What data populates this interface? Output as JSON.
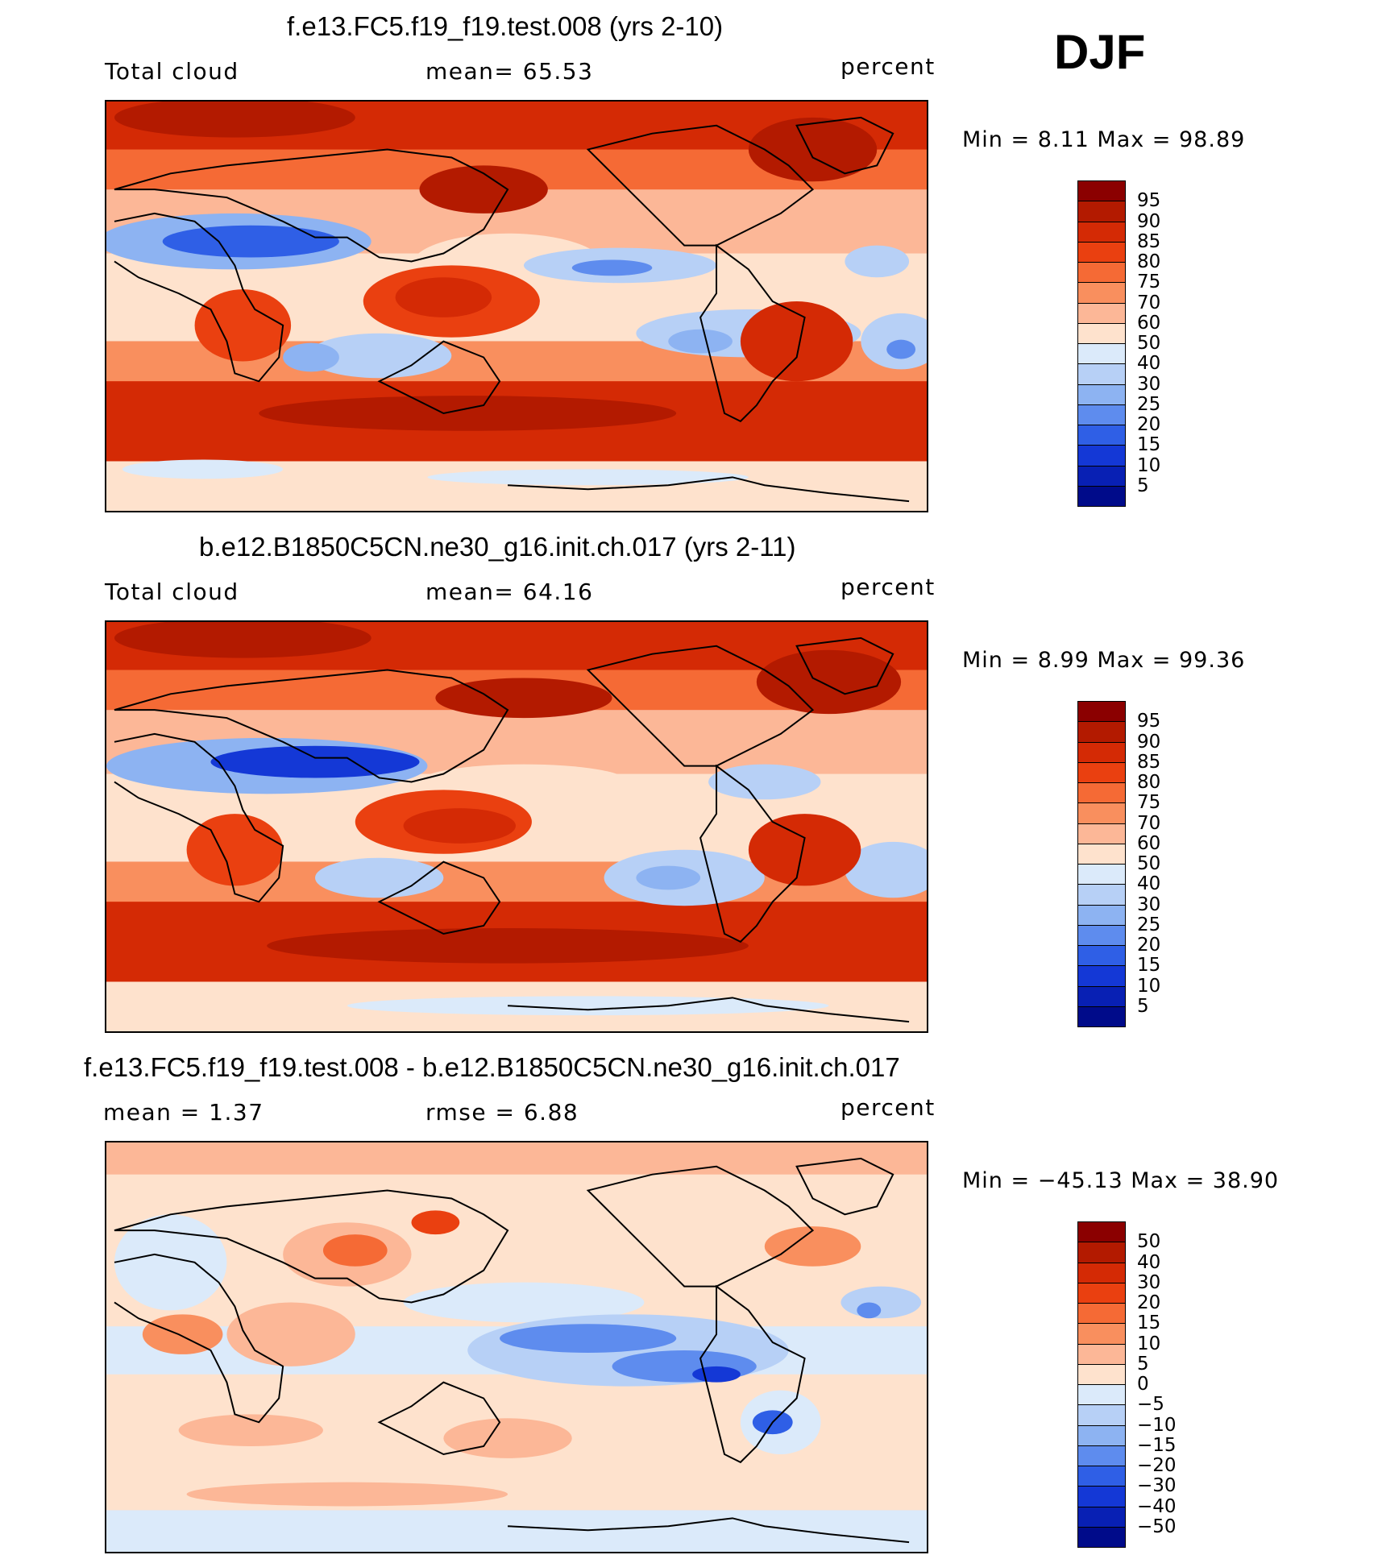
{
  "season": "DJF",
  "units_label": "percent",
  "panels": [
    {
      "title": "f.e13.FC5.f19_f19.test.008 (yrs 2-10)",
      "left_label": "Total cloud",
      "center_label": "mean=   65.53",
      "right_label": "percent",
      "minmax": "Min  =    8.11  Max  =    98.89"
    },
    {
      "title": "b.e12.B1850C5CN.ne30_g16.init.ch.017 (yrs 2-11)",
      "left_label": "Total cloud",
      "center_label": "mean=   64.16",
      "right_label": "percent",
      "minmax": "Min  =    8.99  Max  =    99.36"
    },
    {
      "title": "f.e13.FC5.f19_f19.test.008 - b.e12.B1850C5CN.ne30_g16.init.ch.017",
      "left_label": "mean  =       1.37",
      "center_label": "rmse  =      6.88",
      "right_label": "percent",
      "minmax": "Min  = −45.13  Max  =    38.90"
    }
  ],
  "colorbars": {
    "absolute": {
      "labels": [
        "95",
        "90",
        "85",
        "80",
        "75",
        "70",
        "60",
        "50",
        "40",
        "30",
        "25",
        "20",
        "15",
        "10",
        "5"
      ],
      "colors": [
        "#8b0000",
        "#b31a00",
        "#d42a05",
        "#ea4010",
        "#f56a35",
        "#f98f5e",
        "#fcb797",
        "#fee2cd",
        "#dbeafa",
        "#b7d0f6",
        "#8db3f2",
        "#5e8cee",
        "#2f5fe6",
        "#1438d6",
        "#0820b4",
        "#000b8a"
      ]
    },
    "difference": {
      "labels": [
        "50",
        "40",
        "30",
        "20",
        "15",
        "10",
        "5",
        "0",
        "−5",
        "−10",
        "−15",
        "−20",
        "−30",
        "−40",
        "−50"
      ],
      "colors": [
        "#8b0000",
        "#b31a00",
        "#d42a05",
        "#ea4010",
        "#f56a35",
        "#f98f5e",
        "#fcb797",
        "#fee2cd",
        "#dbeafa",
        "#b7d0f6",
        "#8db3f2",
        "#5e8cee",
        "#2f5fe6",
        "#1438d6",
        "#0820b4",
        "#000b8a"
      ]
    }
  }
}
